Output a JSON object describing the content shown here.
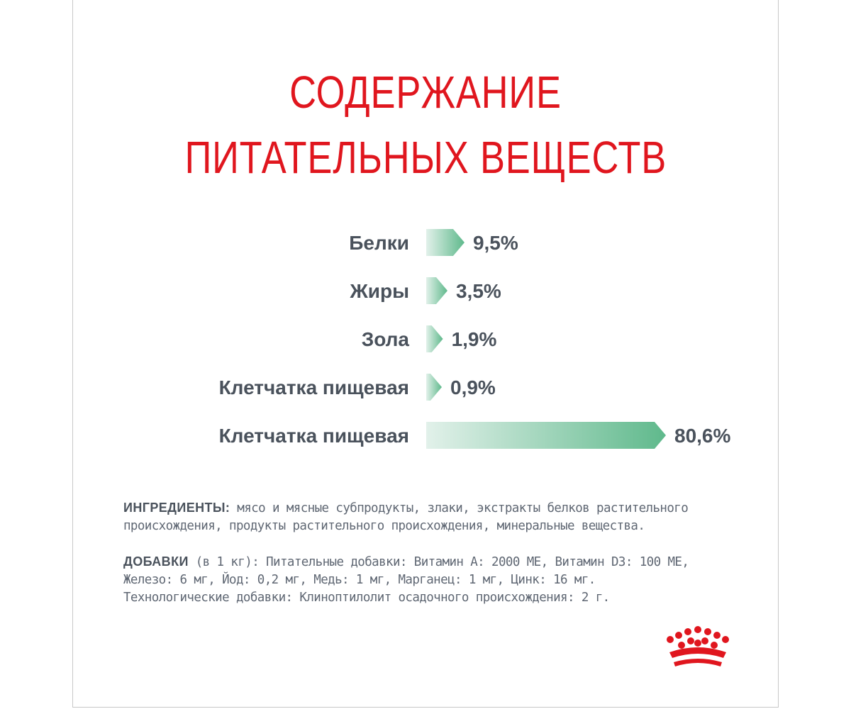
{
  "title_line1": "СОДЕРЖАНИЕ",
  "title_line2": "ПИТАТЕЛЬНЫХ ВЕЩЕСТВ",
  "chart_data": {
    "type": "bar",
    "categories": [
      "Белки",
      "Жиры",
      "Зола",
      "Клетчатка пищевая",
      "Клетчатка пищевая"
    ],
    "values": [
      9.5,
      3.5,
      1.9,
      0.9,
      80.6
    ],
    "value_labels": [
      "9,5%",
      "3,5%",
      "1,9%",
      "0,9%",
      "80,6%"
    ],
    "orientation": "horizontal",
    "colors": {
      "bar_start": "#e2f1ea",
      "bar_end": "#5fb98c",
      "label": "#4a525c"
    }
  },
  "ingredients": {
    "label": "ИНГРЕДИЕНТЫ:",
    "text": " мясо и мясные субпродукты, злаки, экстракты белков растительного происхождения, продукты растительного происхождения, минеральные вещества."
  },
  "additives": {
    "label": "ДОБАВКИ",
    "line1": " (в 1 кг): Питательные добавки: Витамин A: 2000 МЕ, Витамин D3: 100 МЕ,",
    "line2": "Железо: 6 мг, Йод: 0,2 мг, Медь: 1 мг, Марганец: 1 мг, Цинк: 16 мг.",
    "line3": "Технологические добавки: Клиноптилолит осадочного происхождения: 2 г."
  },
  "logo": {
    "name": "crown-logo",
    "color": "#e0161e"
  }
}
